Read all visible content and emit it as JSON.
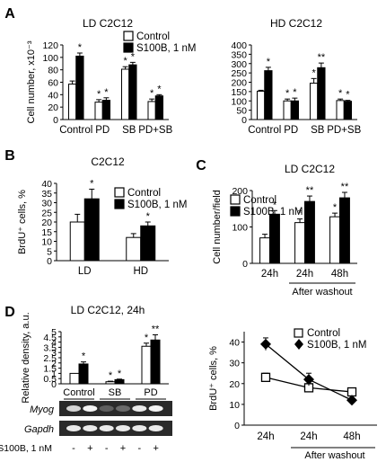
{
  "panels": [
    {
      "letter": "A"
    },
    {
      "letter": "B"
    },
    {
      "letter": "C"
    },
    {
      "letter": "D"
    }
  ],
  "chart_data": [
    {
      "id": "A1",
      "type": "bar",
      "title": "LD C2C12",
      "ylabel": "Cell number, x10⁻³",
      "ylim": [
        0,
        120
      ],
      "yticks": [
        0,
        20,
        40,
        60,
        80,
        100,
        120
      ],
      "categories": [
        "Control",
        "PD",
        "SB",
        "PD+SB"
      ],
      "series": [
        {
          "name": "Control",
          "values": [
            57,
            28,
            81,
            29
          ],
          "errors": [
            5,
            4,
            4,
            4
          ],
          "stars": [
            "",
            "*",
            "*",
            "*"
          ]
        },
        {
          "name": "S100B, 1 nM",
          "values": [
            102,
            31,
            88,
            38
          ],
          "errors": [
            5,
            4,
            4,
            2
          ],
          "stars": [
            "*",
            "*",
            "*",
            "*"
          ]
        }
      ],
      "legend": "top-right"
    },
    {
      "id": "A2",
      "type": "bar",
      "title": "HD C2C12",
      "ylim": [
        0,
        400
      ],
      "yticks": [
        0,
        50,
        100,
        150,
        200,
        250,
        300,
        350,
        400
      ],
      "categories": [
        "Control",
        "PD",
        "SB",
        "PD+SB"
      ],
      "series": [
        {
          "name": "Control",
          "values": [
            152,
            100,
            195,
            102
          ],
          "errors": [
            5,
            10,
            25,
            8
          ],
          "stars": [
            "",
            "*",
            "*",
            "*"
          ]
        },
        {
          "name": "S100B, 1 nM",
          "values": [
            262,
            100,
            278,
            98
          ],
          "errors": [
            18,
            15,
            25,
            5
          ],
          "stars": [
            "*",
            "*",
            "**",
            "*"
          ]
        }
      ]
    },
    {
      "id": "B",
      "type": "bar",
      "title": "C2C12",
      "ylabel": "BrdU⁺ cells, %",
      "ylim": [
        0,
        40
      ],
      "yticks": [
        0,
        5,
        10,
        15,
        20,
        25,
        30,
        35,
        40
      ],
      "categories": [
        "LD",
        "HD"
      ],
      "series": [
        {
          "name": "Control",
          "values": [
            20,
            12
          ],
          "errors": [
            4,
            2
          ],
          "stars": [
            "",
            ""
          ]
        },
        {
          "name": "S100B, 1 nM",
          "values": [
            32,
            18
          ],
          "errors": [
            5,
            2
          ],
          "stars": [
            "*",
            "*"
          ]
        }
      ],
      "legend": "top-right"
    },
    {
      "id": "C",
      "type": "bar",
      "title": "LD C2C12",
      "ylabel": "Cell number/field",
      "ylim": [
        0,
        200
      ],
      "yticks": [
        0,
        100,
        200
      ],
      "categories": [
        "24h",
        "24h",
        "48h"
      ],
      "group_label": "After washout",
      "series": [
        {
          "name": "Control",
          "values": [
            70,
            112,
            128
          ],
          "errors": [
            10,
            10,
            10
          ],
          "stars": [
            "",
            "*",
            "*"
          ]
        },
        {
          "name": "S100B, 1 nM",
          "values": [
            135,
            170,
            180
          ],
          "errors": [
            10,
            15,
            15
          ],
          "stars": [
            "*",
            "**",
            "**"
          ]
        }
      ],
      "legend": "top-left"
    },
    {
      "id": "D1",
      "type": "bar",
      "title": "LD C2C12, 24h",
      "ylabel": "Relative density, a.u.",
      "ylim": [
        0,
        5
      ],
      "yticks": [
        0,
        0.5,
        1,
        1.5,
        2,
        2.5,
        3,
        3.5,
        4,
        4.5,
        5
      ],
      "categories": [
        "Control",
        "SB",
        "PD"
      ],
      "series": [
        {
          "name": "Control",
          "values": [
            1.0,
            0.2,
            3.6
          ],
          "errors": [
            0,
            0.05,
            0.3
          ],
          "stars": [
            "",
            "*",
            "*"
          ]
        },
        {
          "name": "S100B, 1 nM",
          "values": [
            1.9,
            0.4,
            4.2
          ],
          "errors": [
            0.2,
            0.05,
            0.5
          ],
          "stars": [
            "*",
            "*",
            "**"
          ]
        }
      ],
      "blots": [
        "Myog",
        "Gapdh"
      ],
      "treatment_label": "S100B, 1 nM",
      "treatment_signs": [
        "-",
        "+",
        "-",
        "+",
        "-",
        "+"
      ]
    },
    {
      "id": "D2",
      "type": "line",
      "ylabel": "BrdU⁺ cells, %",
      "ylim": [
        0,
        45
      ],
      "yticks": [
        0,
        10,
        20,
        30,
        40
      ],
      "categories": [
        "24h",
        "24h",
        "48h"
      ],
      "group_label": "After washout",
      "series": [
        {
          "name": "Control",
          "marker": "square",
          "values": [
            23,
            18,
            16
          ],
          "errors": [
            2,
            2,
            1
          ]
        },
        {
          "name": "S100B, 1 nM",
          "marker": "diamond",
          "values": [
            39,
            22,
            12
          ],
          "errors": [
            3,
            3,
            1
          ]
        }
      ],
      "legend": "top-right"
    }
  ]
}
